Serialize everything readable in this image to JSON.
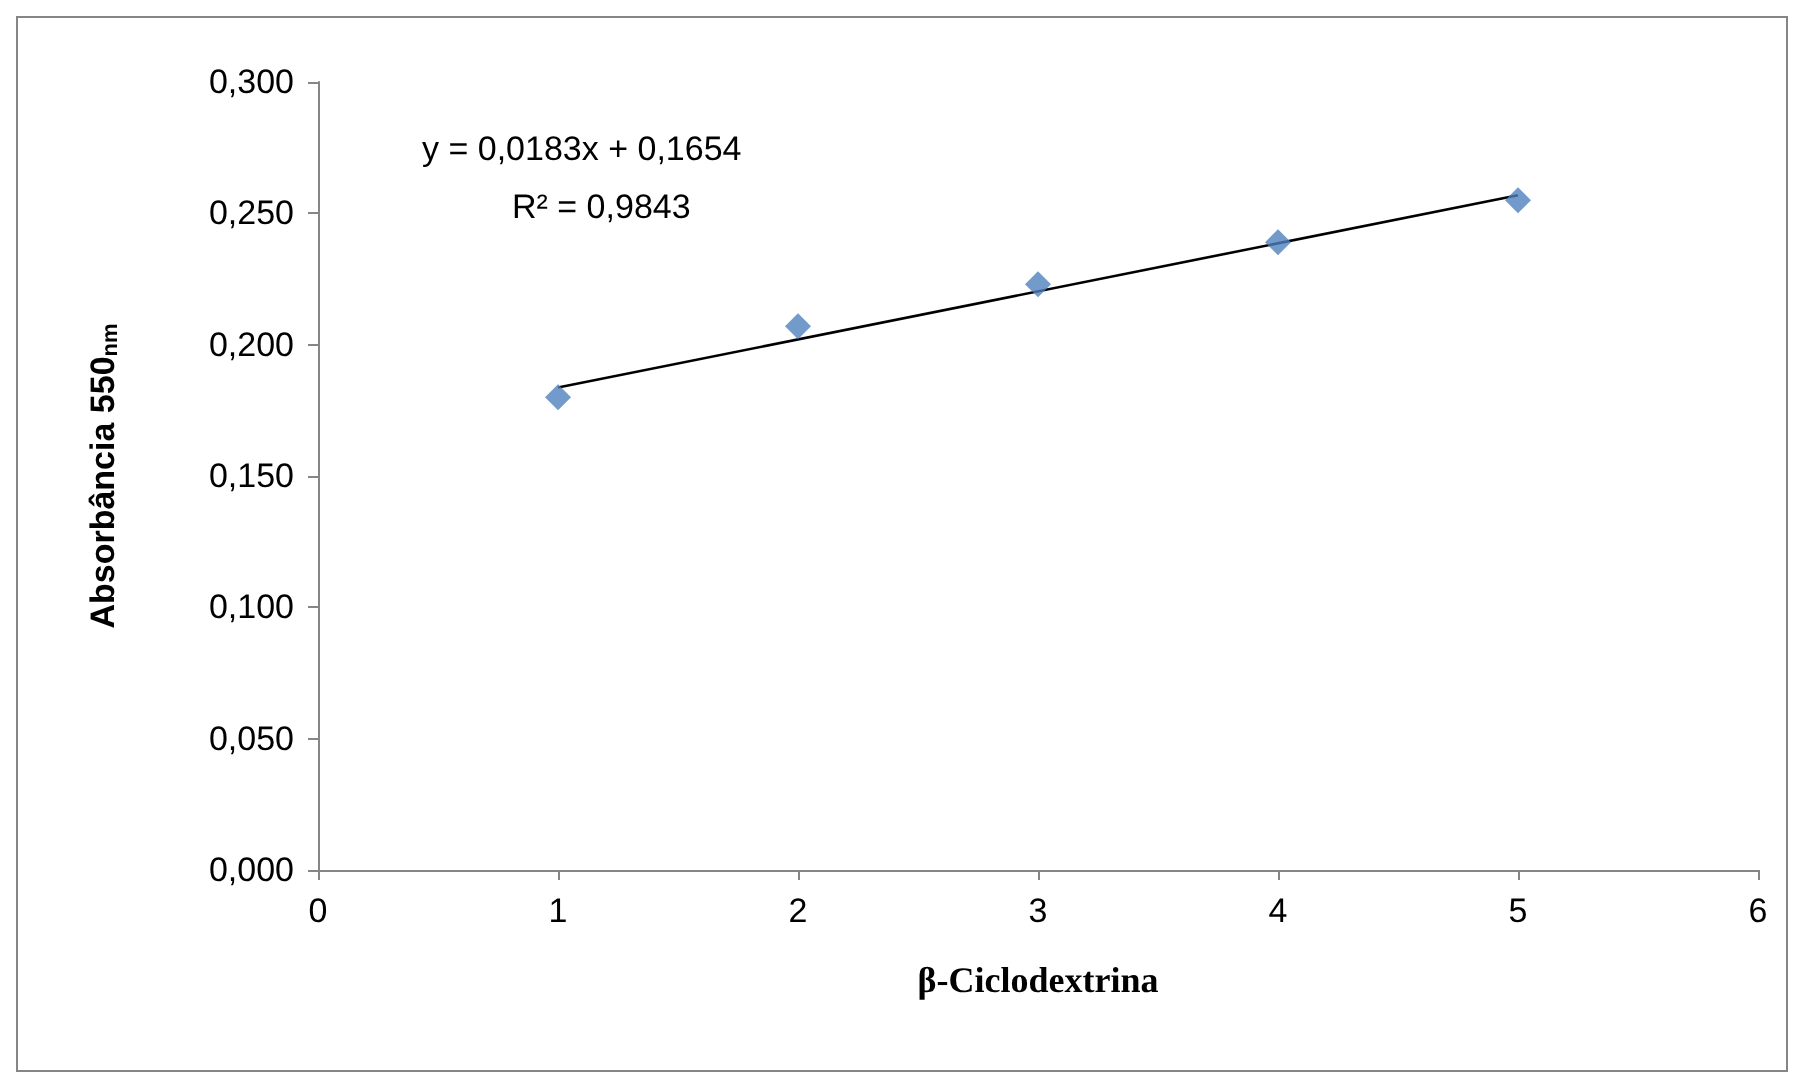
{
  "chart_data": {
    "type": "scatter",
    "xlabel": "β-Ciclodextrina",
    "ylabel": "Absorbância 550$_{nm}$",
    "xlim": [
      0,
      6
    ],
    "xticks": [
      0,
      1,
      2,
      3,
      4,
      5,
      6
    ],
    "ylim": [
      0,
      0.3
    ],
    "yticks": [
      {
        "value": 0,
        "label": "0,000"
      },
      {
        "value": 0.05,
        "label": "0,050"
      },
      {
        "value": 0.1,
        "label": "0,100"
      },
      {
        "value": 0.15,
        "label": "0,150"
      },
      {
        "value": 0.2,
        "label": "0,200"
      },
      {
        "value": 0.25,
        "label": "0,250"
      },
      {
        "value": 0.3,
        "label": "0,300"
      }
    ],
    "grid": false,
    "marker": "diamond",
    "annotations": [
      "y = 0,0183x + 0,1654",
      "R² = 0,9843"
    ],
    "series": [
      {
        "color": "#4f81bd",
        "x": [
          1,
          2,
          3,
          4,
          5
        ],
        "values": [
          0.18,
          0.207,
          0.223,
          0.239,
          0.255
        ]
      },
      {
        "type": "line",
        "color": "#000000",
        "marker": "none",
        "line_style": "solid",
        "x": [
          1,
          5
        ],
        "values": [
          0.1837,
          0.2569
        ]
      }
    ]
  }
}
